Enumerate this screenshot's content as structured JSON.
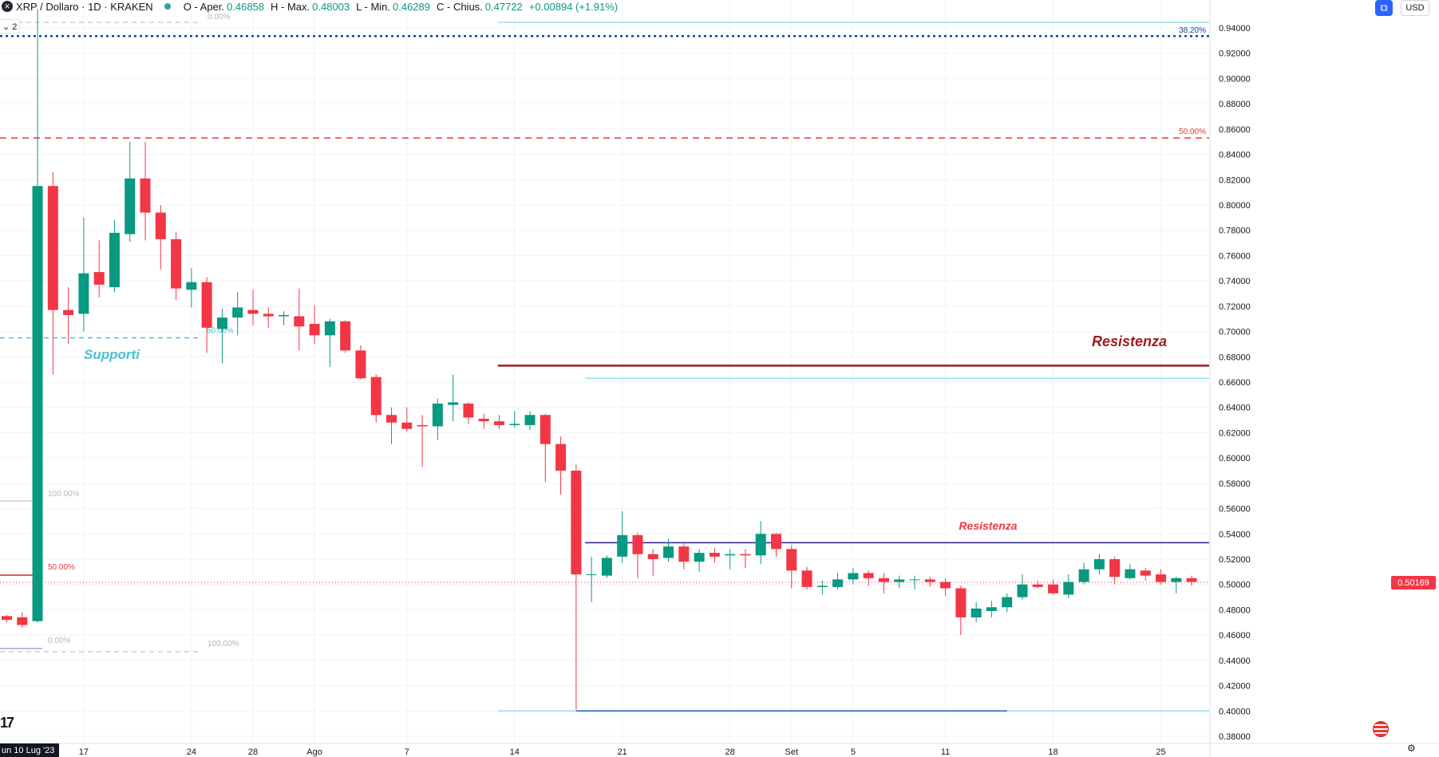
{
  "header": {
    "symbol_title": "XRP / Dollaro · 1D · KRAKEN",
    "open_label": "O - Aper.",
    "open_value": "0.46858",
    "high_label": "H - Max.",
    "high_value": "0.48003",
    "low_label": "L - Min.",
    "low_value": "0.46289",
    "close_label": "C - Chius.",
    "close_value": "0.47722",
    "change_value": "+0.00894 (+1.91%)",
    "logo_glyph": "✕"
  },
  "collapse_button": {
    "label": "⌄ 2"
  },
  "top_right": {
    "currency": "USD",
    "settings_icon": "⧉"
  },
  "watermark_logo": "17",
  "current_date_label": "un 10 Lug '23",
  "last_price": "0.50169",
  "colors": {
    "up": "#089981",
    "down": "#f23645",
    "resistance_top": "#a01c23",
    "resistance_mid": "#311b92",
    "support_label": "#48c0d6",
    "fib_red": "#e53935",
    "fib_blue": "#0d47a1",
    "cyan_line": "#90e0ef",
    "support_lower": "#1565c0"
  },
  "annotations": {
    "resistenza_top": "Resistenza",
    "resistenza_mid": "Resistenza",
    "supporti": "Supporti"
  },
  "fib_labels": {
    "f0_top": "0.00%",
    "f50_red": "50.00%",
    "f38_blue": "38.20%",
    "f50_right": "50.00%",
    "f50_support": "50.00%",
    "f100_mid": "100.00%",
    "f50_low": "50.00%",
    "f0_low": "0.00%",
    "f100_low": "100.00%"
  },
  "chart_data": {
    "type": "candlestick",
    "title": "XRP / Dollaro · 1D · KRAKEN",
    "xlabel": "",
    "ylabel": "",
    "ylim": [
      0.37,
      0.955
    ],
    "y_ticks": [
      "0.94000",
      "0.92000",
      "0.90000",
      "0.88000",
      "0.86000",
      "0.84000",
      "0.82000",
      "0.80000",
      "0.78000",
      "0.76000",
      "0.74000",
      "0.72000",
      "0.70000",
      "0.68000",
      "0.66000",
      "0.64000",
      "0.62000",
      "0.60000",
      "0.58000",
      "0.56000",
      "0.54000",
      "0.52000",
      "0.50000",
      "0.48000",
      "0.46000",
      "0.44000",
      "0.42000",
      "0.40000",
      "0.38000"
    ],
    "x_ticks": [
      "17",
      "24",
      "28",
      "Ago",
      "7",
      "14",
      "21",
      "28",
      "Set",
      "5",
      "11",
      "18",
      "25"
    ],
    "grid": true,
    "candles": [
      {
        "date": "2023-07-12",
        "o": 0.475,
        "h": 0.476,
        "l": 0.47,
        "c": 0.472
      },
      {
        "date": "2023-07-13",
        "o": 0.474,
        "h": 0.478,
        "l": 0.466,
        "c": 0.468
      },
      {
        "date": "2023-07-14",
        "o": 0.471,
        "h": 0.955,
        "l": 0.47,
        "c": 0.815
      },
      {
        "date": "2023-07-15",
        "o": 0.815,
        "h": 0.826,
        "l": 0.666,
        "c": 0.717
      },
      {
        "date": "2023-07-16",
        "o": 0.717,
        "h": 0.735,
        "l": 0.69,
        "c": 0.713
      },
      {
        "date": "2023-07-17",
        "o": 0.714,
        "h": 0.79,
        "l": 0.7,
        "c": 0.746
      },
      {
        "date": "2023-07-18",
        "o": 0.747,
        "h": 0.772,
        "l": 0.727,
        "c": 0.737
      },
      {
        "date": "2023-07-19",
        "o": 0.735,
        "h": 0.788,
        "l": 0.731,
        "c": 0.778
      },
      {
        "date": "2023-07-20",
        "o": 0.777,
        "h": 0.85,
        "l": 0.771,
        "c": 0.821
      },
      {
        "date": "2023-07-21",
        "o": 0.821,
        "h": 0.85,
        "l": 0.772,
        "c": 0.794
      },
      {
        "date": "2023-07-22",
        "o": 0.794,
        "h": 0.8,
        "l": 0.749,
        "c": 0.773
      },
      {
        "date": "2023-07-23",
        "o": 0.773,
        "h": 0.779,
        "l": 0.725,
        "c": 0.734
      },
      {
        "date": "2023-07-24",
        "o": 0.733,
        "h": 0.75,
        "l": 0.719,
        "c": 0.739
      },
      {
        "date": "2023-07-25",
        "o": 0.739,
        "h": 0.743,
        "l": 0.683,
        "c": 0.703
      },
      {
        "date": "2023-07-26",
        "o": 0.702,
        "h": 0.718,
        "l": 0.675,
        "c": 0.711
      },
      {
        "date": "2023-07-27",
        "o": 0.711,
        "h": 0.731,
        "l": 0.697,
        "c": 0.719
      },
      {
        "date": "2023-07-28",
        "o": 0.717,
        "h": 0.733,
        "l": 0.705,
        "c": 0.714
      },
      {
        "date": "2023-07-29",
        "o": 0.714,
        "h": 0.719,
        "l": 0.703,
        "c": 0.712
      },
      {
        "date": "2023-07-30",
        "o": 0.712,
        "h": 0.716,
        "l": 0.705,
        "c": 0.713
      },
      {
        "date": "2023-07-31",
        "o": 0.712,
        "h": 0.734,
        "l": 0.685,
        "c": 0.704
      },
      {
        "date": "2023-08-01",
        "o": 0.706,
        "h": 0.721,
        "l": 0.69,
        "c": 0.697
      },
      {
        "date": "2023-08-02",
        "o": 0.697,
        "h": 0.71,
        "l": 0.672,
        "c": 0.708
      },
      {
        "date": "2023-08-03",
        "o": 0.708,
        "h": 0.709,
        "l": 0.683,
        "c": 0.685
      },
      {
        "date": "2023-08-04",
        "o": 0.685,
        "h": 0.689,
        "l": 0.662,
        "c": 0.663
      },
      {
        "date": "2023-08-05",
        "o": 0.664,
        "h": 0.666,
        "l": 0.628,
        "c": 0.634
      },
      {
        "date": "2023-08-06",
        "o": 0.634,
        "h": 0.64,
        "l": 0.611,
        "c": 0.628
      },
      {
        "date": "2023-08-07",
        "o": 0.628,
        "h": 0.64,
        "l": 0.621,
        "c": 0.623
      },
      {
        "date": "2023-08-08",
        "o": 0.626,
        "h": 0.634,
        "l": 0.593,
        "c": 0.625
      },
      {
        "date": "2023-08-09",
        "o": 0.625,
        "h": 0.647,
        "l": 0.614,
        "c": 0.643
      },
      {
        "date": "2023-08-10",
        "o": 0.642,
        "h": 0.666,
        "l": 0.629,
        "c": 0.644
      },
      {
        "date": "2023-08-11",
        "o": 0.643,
        "h": 0.644,
        "l": 0.627,
        "c": 0.632
      },
      {
        "date": "2023-08-12",
        "o": 0.631,
        "h": 0.635,
        "l": 0.623,
        "c": 0.629
      },
      {
        "date": "2023-08-13",
        "o": 0.629,
        "h": 0.634,
        "l": 0.623,
        "c": 0.626
      },
      {
        "date": "2023-08-14",
        "o": 0.626,
        "h": 0.637,
        "l": 0.624,
        "c": 0.627
      },
      {
        "date": "2023-08-15",
        "o": 0.626,
        "h": 0.637,
        "l": 0.622,
        "c": 0.634
      },
      {
        "date": "2023-08-16",
        "o": 0.634,
        "h": 0.635,
        "l": 0.581,
        "c": 0.611
      },
      {
        "date": "2023-08-17",
        "o": 0.611,
        "h": 0.617,
        "l": 0.571,
        "c": 0.59
      },
      {
        "date": "2023-08-18",
        "o": 0.59,
        "h": 0.595,
        "l": 0.401,
        "c": 0.508
      },
      {
        "date": "2023-08-19",
        "o": 0.508,
        "h": 0.522,
        "l": 0.486,
        "c": 0.508
      },
      {
        "date": "2023-08-20",
        "o": 0.507,
        "h": 0.523,
        "l": 0.505,
        "c": 0.521
      },
      {
        "date": "2023-08-21",
        "o": 0.522,
        "h": 0.558,
        "l": 0.517,
        "c": 0.539
      },
      {
        "date": "2023-08-22",
        "o": 0.539,
        "h": 0.541,
        "l": 0.505,
        "c": 0.524
      },
      {
        "date": "2023-08-23",
        "o": 0.524,
        "h": 0.528,
        "l": 0.507,
        "c": 0.52
      },
      {
        "date": "2023-08-24",
        "o": 0.521,
        "h": 0.536,
        "l": 0.518,
        "c": 0.53
      },
      {
        "date": "2023-08-25",
        "o": 0.53,
        "h": 0.534,
        "l": 0.512,
        "c": 0.518
      },
      {
        "date": "2023-08-26",
        "o": 0.518,
        "h": 0.528,
        "l": 0.51,
        "c": 0.525
      },
      {
        "date": "2023-08-27",
        "o": 0.525,
        "h": 0.529,
        "l": 0.517,
        "c": 0.522
      },
      {
        "date": "2023-08-28",
        "o": 0.523,
        "h": 0.528,
        "l": 0.512,
        "c": 0.524
      },
      {
        "date": "2023-08-29",
        "o": 0.524,
        "h": 0.528,
        "l": 0.513,
        "c": 0.523
      },
      {
        "date": "2023-08-30",
        "o": 0.523,
        "h": 0.55,
        "l": 0.516,
        "c": 0.54
      },
      {
        "date": "2023-08-31",
        "o": 0.54,
        "h": 0.541,
        "l": 0.522,
        "c": 0.528
      },
      {
        "date": "2023-09-01",
        "o": 0.528,
        "h": 0.531,
        "l": 0.497,
        "c": 0.511
      },
      {
        "date": "2023-09-02",
        "o": 0.511,
        "h": 0.514,
        "l": 0.496,
        "c": 0.498
      },
      {
        "date": "2023-09-03",
        "o": 0.498,
        "h": 0.503,
        "l": 0.492,
        "c": 0.499
      },
      {
        "date": "2023-09-04",
        "o": 0.498,
        "h": 0.509,
        "l": 0.496,
        "c": 0.504
      },
      {
        "date": "2023-09-05",
        "o": 0.504,
        "h": 0.513,
        "l": 0.5,
        "c": 0.509
      },
      {
        "date": "2023-09-06",
        "o": 0.509,
        "h": 0.511,
        "l": 0.499,
        "c": 0.505
      },
      {
        "date": "2023-09-07",
        "o": 0.505,
        "h": 0.509,
        "l": 0.493,
        "c": 0.502
      },
      {
        "date": "2023-09-08",
        "o": 0.502,
        "h": 0.507,
        "l": 0.497,
        "c": 0.504
      },
      {
        "date": "2023-09-09",
        "o": 0.504,
        "h": 0.507,
        "l": 0.496,
        "c": 0.504
      },
      {
        "date": "2023-09-10",
        "o": 0.504,
        "h": 0.506,
        "l": 0.498,
        "c": 0.502
      },
      {
        "date": "2023-09-11",
        "o": 0.502,
        "h": 0.505,
        "l": 0.491,
        "c": 0.497
      },
      {
        "date": "2023-09-12",
        "o": 0.497,
        "h": 0.499,
        "l": 0.46,
        "c": 0.474
      },
      {
        "date": "2023-09-13",
        "o": 0.474,
        "h": 0.486,
        "l": 0.47,
        "c": 0.481
      },
      {
        "date": "2023-09-14",
        "o": 0.479,
        "h": 0.487,
        "l": 0.474,
        "c": 0.482
      },
      {
        "date": "2023-09-15",
        "o": 0.482,
        "h": 0.493,
        "l": 0.478,
        "c": 0.49
      },
      {
        "date": "2023-09-16",
        "o": 0.49,
        "h": 0.508,
        "l": 0.488,
        "c": 0.5
      },
      {
        "date": "2023-09-17",
        "o": 0.5,
        "h": 0.503,
        "l": 0.497,
        "c": 0.498
      },
      {
        "date": "2023-09-18",
        "o": 0.5,
        "h": 0.504,
        "l": 0.492,
        "c": 0.493
      },
      {
        "date": "2023-09-19",
        "o": 0.492,
        "h": 0.508,
        "l": 0.489,
        "c": 0.502
      },
      {
        "date": "2023-09-20",
        "o": 0.502,
        "h": 0.517,
        "l": 0.5,
        "c": 0.512
      },
      {
        "date": "2023-09-21",
        "o": 0.512,
        "h": 0.524,
        "l": 0.508,
        "c": 0.52
      },
      {
        "date": "2023-09-22",
        "o": 0.52,
        "h": 0.522,
        "l": 0.5,
        "c": 0.506
      },
      {
        "date": "2023-09-23",
        "o": 0.505,
        "h": 0.516,
        "l": 0.504,
        "c": 0.512
      },
      {
        "date": "2023-09-24",
        "o": 0.511,
        "h": 0.513,
        "l": 0.503,
        "c": 0.507
      },
      {
        "date": "2023-09-25",
        "o": 0.508,
        "h": 0.512,
        "l": 0.5,
        "c": 0.502
      },
      {
        "date": "2023-09-26",
        "o": 0.502,
        "h": 0.506,
        "l": 0.493,
        "c": 0.505
      },
      {
        "date": "2023-09-27",
        "o": 0.505,
        "h": 0.507,
        "l": 0.499,
        "c": 0.502
      }
    ],
    "levels": [
      {
        "name": "Resistenza",
        "value": 0.673,
        "from": "2023-08-14",
        "to": "2023-09-29"
      },
      {
        "name": "Resistenza",
        "value": 0.533,
        "from": "2023-08-19",
        "to": "2023-09-29"
      },
      {
        "name": "Supporti",
        "value": 0.695,
        "from": "2023-07-10",
        "to": "2023-07-23"
      }
    ],
    "last_price": 0.50169
  }
}
